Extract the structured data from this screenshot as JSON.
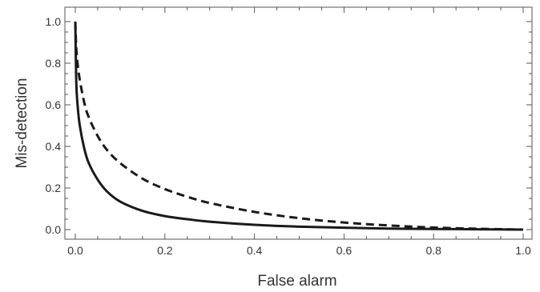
{
  "chart_data": {
    "type": "line",
    "xlabel": "False alarm",
    "ylabel": "Mis-detection",
    "xlim": [
      0.0,
      1.0
    ],
    "ylim": [
      0.0,
      1.0
    ],
    "x_ticks": [
      "0.0",
      "0.2",
      "0.4",
      "0.6",
      "0.8",
      "1.0"
    ],
    "y_ticks": [
      "0.0",
      "0.2",
      "0.4",
      "0.6",
      "0.8",
      "1.0"
    ],
    "grid": false,
    "legend": "none",
    "series": [
      {
        "style": "solid",
        "color": "#1a1a1a",
        "x": [
          0.0,
          0.002,
          0.005,
          0.01,
          0.02,
          0.03,
          0.05,
          0.07,
          0.1,
          0.15,
          0.2,
          0.25,
          0.3,
          0.4,
          0.5,
          0.6,
          0.7,
          0.8,
          0.9,
          1.0
        ],
        "y": [
          1.0,
          0.72,
          0.6,
          0.5,
          0.39,
          0.32,
          0.24,
          0.185,
          0.135,
          0.09,
          0.065,
          0.05,
          0.038,
          0.023,
          0.014,
          0.009,
          0.005,
          0.003,
          0.0015,
          0.0
        ]
      },
      {
        "style": "dashed",
        "color": "#1a1a1a",
        "x": [
          0.0,
          0.002,
          0.005,
          0.01,
          0.02,
          0.03,
          0.05,
          0.07,
          0.1,
          0.15,
          0.2,
          0.25,
          0.3,
          0.4,
          0.5,
          0.6,
          0.7,
          0.8,
          0.9,
          1.0
        ],
        "y": [
          1.0,
          0.88,
          0.8,
          0.72,
          0.61,
          0.54,
          0.45,
          0.385,
          0.32,
          0.245,
          0.195,
          0.158,
          0.128,
          0.085,
          0.055,
          0.034,
          0.02,
          0.01,
          0.004,
          0.0
        ]
      }
    ]
  }
}
